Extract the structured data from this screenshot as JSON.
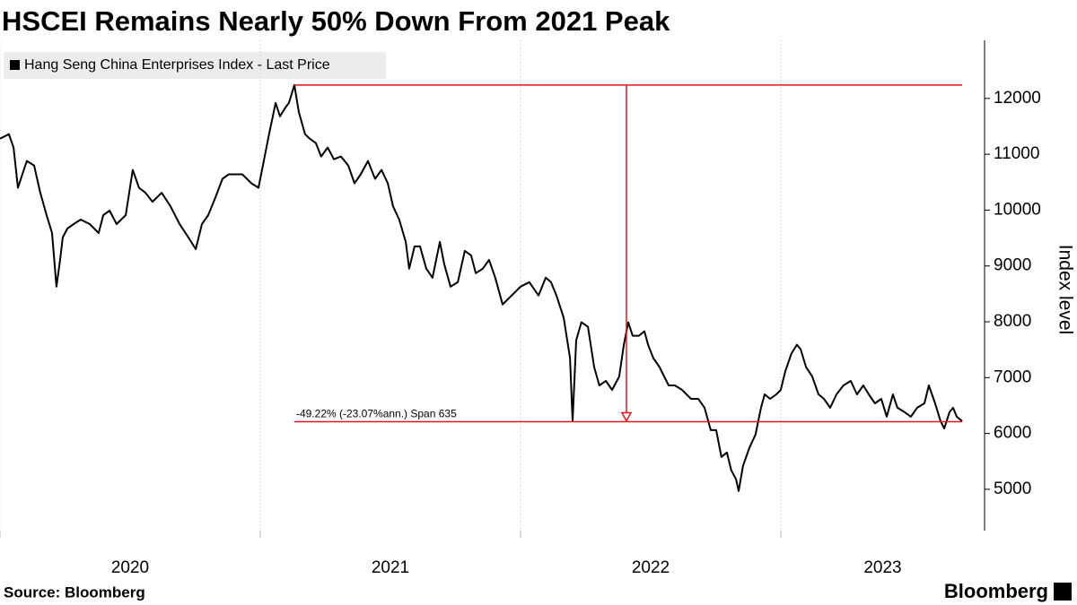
{
  "chart_data": {
    "type": "line",
    "title": "HSCEI Remains Nearly 50% Down From 2021 Peak",
    "y_label": "Index level",
    "source": "Source: Bloomberg",
    "brand": "Bloomberg",
    "legend_position": "top-left",
    "xlim": [
      2020,
      2023.783
    ],
    "xticks": [
      2020,
      2021,
      2022,
      2023
    ],
    "ylim": [
      4260,
      12880
    ],
    "yticks": [
      5000,
      6000,
      7000,
      8000,
      9000,
      10000,
      11000,
      12000
    ],
    "grid": true,
    "series": [
      {
        "name": "Hang Seng China Enterprises Index - Last Price",
        "color": "#000000",
        "x": [
          2020.0,
          2020.034,
          2020.052,
          2020.069,
          2020.086,
          2020.103,
          2020.131,
          2020.155,
          2020.179,
          2020.2,
          2020.217,
          2020.231,
          2020.241,
          2020.259,
          2020.283,
          2020.31,
          2020.345,
          2020.379,
          2020.397,
          2020.421,
          2020.448,
          2020.483,
          2020.51,
          2020.534,
          2020.559,
          2020.586,
          2020.621,
          2020.655,
          2020.69,
          2020.724,
          2020.752,
          2020.776,
          2020.8,
          2020.828,
          2020.855,
          2020.879,
          2020.903,
          2020.931,
          2020.966,
          2020.993,
          2021.017,
          2021.034,
          2021.059,
          2021.076,
          2021.097,
          2021.11,
          2021.131,
          2021.148,
          2021.172,
          2021.19,
          2021.214,
          2021.234,
          2021.259,
          2021.283,
          2021.31,
          2021.338,
          2021.362,
          2021.386,
          2021.414,
          2021.441,
          2021.466,
          2021.49,
          2021.51,
          2021.534,
          2021.559,
          2021.572,
          2021.593,
          2021.614,
          2021.638,
          2021.662,
          2021.69,
          2021.707,
          2021.731,
          2021.759,
          2021.786,
          2021.81,
          2021.828,
          2021.855,
          2021.879,
          2021.903,
          2021.931,
          2021.966,
          2022.0,
          2022.034,
          2022.069,
          2022.097,
          2022.117,
          2022.138,
          2022.166,
          2022.19,
          2022.2,
          2022.214,
          2022.234,
          2022.259,
          2022.283,
          2022.303,
          2022.328,
          2022.352,
          2022.379,
          2022.397,
          2022.414,
          2022.431,
          2022.455,
          2022.476,
          2022.49,
          2022.51,
          2022.534,
          2022.569,
          2022.593,
          2022.621,
          2022.655,
          2022.683,
          2022.707,
          2022.731,
          2022.752,
          2022.772,
          2022.793,
          2022.81,
          2022.828,
          2022.838,
          2022.855,
          2022.879,
          2022.903,
          2022.924,
          2022.938,
          2022.959,
          2022.983,
          2023.0,
          2023.017,
          2023.041,
          2023.062,
          2023.076,
          2023.097,
          2023.121,
          2023.145,
          2023.166,
          2023.19,
          2023.214,
          2023.241,
          2023.269,
          2023.293,
          2023.317,
          2023.338,
          2023.362,
          2023.386,
          2023.407,
          2023.431,
          2023.448,
          2023.476,
          2023.5,
          2023.524,
          2023.552,
          2023.569,
          2023.593,
          2023.614,
          2023.628,
          2023.648,
          2023.662,
          2023.676,
          2023.697
        ],
        "values": [
          11280,
          11360,
          11120,
          10400,
          10640,
          10880,
          10800,
          10310,
          9910,
          9590,
          8630,
          9110,
          9510,
          9670,
          9750,
          9830,
          9750,
          9590,
          9910,
          9990,
          9750,
          9910,
          10720,
          10400,
          10310,
          10150,
          10310,
          10070,
          9750,
          9510,
          9300,
          9750,
          9910,
          10230,
          10560,
          10640,
          10640,
          10640,
          10480,
          10400,
          10960,
          11360,
          11920,
          11680,
          11840,
          11920,
          12240,
          11760,
          11360,
          11280,
          11200,
          10960,
          11120,
          10910,
          10960,
          10800,
          10480,
          10640,
          10880,
          10560,
          10720,
          10480,
          10070,
          9830,
          9430,
          8950,
          9350,
          9350,
          8950,
          8790,
          9430,
          9030,
          8630,
          8710,
          9270,
          9190,
          8870,
          8950,
          9110,
          8790,
          8310,
          8470,
          8630,
          8710,
          8470,
          8790,
          8710,
          8470,
          8070,
          7350,
          6220,
          7670,
          7990,
          7910,
          7190,
          6860,
          6940,
          6780,
          7020,
          7590,
          7990,
          7750,
          7750,
          7830,
          7590,
          7350,
          7190,
          6860,
          6860,
          6780,
          6620,
          6620,
          6460,
          6060,
          6060,
          5580,
          5660,
          5340,
          5180,
          4970,
          5420,
          5740,
          5980,
          6460,
          6700,
          6620,
          6700,
          6780,
          7110,
          7430,
          7590,
          7510,
          7190,
          7020,
          6700,
          6620,
          6460,
          6700,
          6860,
          6940,
          6700,
          6860,
          6700,
          6540,
          6620,
          6300,
          6700,
          6460,
          6380,
          6300,
          6460,
          6540,
          6860,
          6540,
          6220,
          6090,
          6380,
          6460,
          6300,
          6220
        ]
      }
    ],
    "annotation": {
      "text": "-49.22% (-23.07%ann.) Span 635",
      "color": "#e8131b",
      "start_x": 2021.131,
      "end_x": 2023.697,
      "arrow_x": 2022.407,
      "high": 12240,
      "low": 6210
    }
  }
}
